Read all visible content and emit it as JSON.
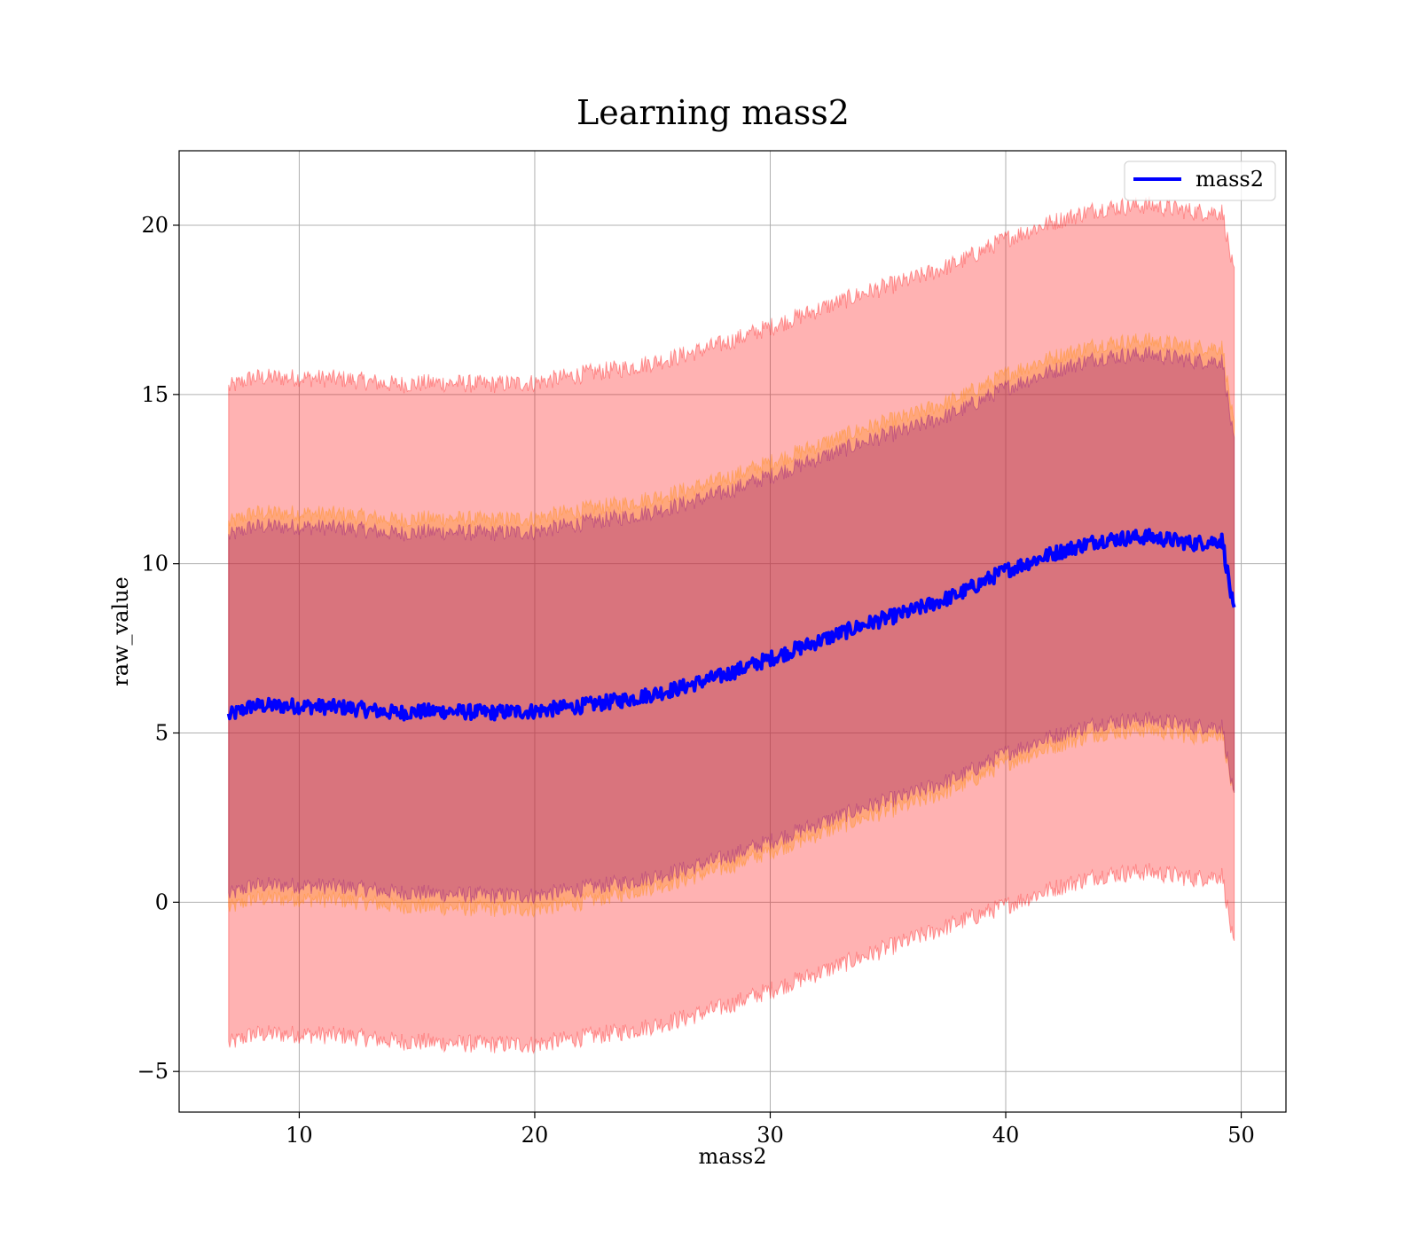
{
  "chart_data": {
    "type": "area",
    "title": "Learning mass2",
    "xlabel": "mass2",
    "ylabel": "raw_value",
    "xlim": [
      4.9,
      51.9
    ],
    "ylim": [
      -6.2,
      22.2
    ],
    "xticks": [
      10,
      20,
      30,
      40,
      50
    ],
    "xtick_labels": [
      "10",
      "20",
      "30",
      "40",
      "50"
    ],
    "yticks": [
      -5,
      0,
      5,
      10,
      15,
      20
    ],
    "ytick_labels": [
      "−5",
      "0",
      "5",
      "10",
      "15",
      "20"
    ],
    "grid": true,
    "legend": {
      "position": "top-right",
      "entries": [
        "mass2"
      ]
    },
    "colors": {
      "line": "#0000ff",
      "band_outer": "#ff0000",
      "band_mid": "#ff8c00",
      "band_inner": "#800080"
    },
    "x": [
      7,
      8,
      10,
      12,
      14,
      16,
      18,
      20,
      22,
      24,
      26,
      28,
      30,
      32,
      34,
      36,
      38,
      40,
      42,
      44,
      46,
      48,
      49.2,
      49.7
    ],
    "series": [
      {
        "name": "mass2",
        "role": "line",
        "values": [
          5.5,
          5.8,
          5.8,
          5.75,
          5.6,
          5.65,
          5.6,
          5.65,
          5.8,
          6.0,
          6.3,
          6.7,
          7.2,
          7.7,
          8.2,
          8.6,
          9.1,
          9.8,
          10.3,
          10.7,
          10.8,
          10.6,
          10.7,
          8.5
        ]
      },
      {
        "role": "band-outer",
        "lower": [
          -4.2,
          -3.9,
          -3.9,
          -3.95,
          -4.1,
          -4.15,
          -4.2,
          -4.2,
          -4.0,
          -3.8,
          -3.5,
          -3.1,
          -2.6,
          -2.1,
          -1.6,
          -1.1,
          -0.6,
          -0.1,
          0.4,
          0.8,
          0.9,
          0.7,
          0.8,
          -1.4
        ],
        "upper": [
          15.2,
          15.5,
          15.5,
          15.45,
          15.3,
          15.35,
          15.3,
          15.35,
          15.6,
          15.8,
          16.1,
          16.5,
          17.0,
          17.5,
          18.0,
          18.4,
          18.9,
          19.6,
          20.1,
          20.5,
          20.6,
          20.4,
          20.4,
          18.5
        ]
      },
      {
        "role": "band-mid",
        "lower": [
          -0.2,
          0.1,
          0.1,
          0.05,
          -0.1,
          -0.15,
          -0.2,
          -0.2,
          0.0,
          0.3,
          0.6,
          1.0,
          1.5,
          2.0,
          2.5,
          2.9,
          3.4,
          4.1,
          4.6,
          5.0,
          5.1,
          4.9,
          5.0,
          3.0
        ],
        "upper": [
          11.2,
          11.5,
          11.5,
          11.45,
          11.3,
          11.35,
          11.3,
          11.35,
          11.6,
          11.8,
          12.1,
          12.5,
          13.0,
          13.5,
          14.0,
          14.4,
          14.9,
          15.6,
          16.1,
          16.5,
          16.6,
          16.4,
          16.4,
          14.0
        ]
      },
      {
        "role": "band-inner",
        "lower": [
          0.2,
          0.5,
          0.5,
          0.45,
          0.3,
          0.25,
          0.2,
          0.2,
          0.4,
          0.6,
          0.9,
          1.3,
          1.8,
          2.3,
          2.8,
          3.2,
          3.7,
          4.4,
          4.9,
          5.3,
          5.4,
          5.2,
          5.2,
          3.0
        ],
        "upper": [
          10.8,
          11.1,
          11.1,
          11.05,
          10.9,
          10.95,
          10.9,
          10.95,
          11.2,
          11.4,
          11.7,
          12.1,
          12.6,
          13.1,
          13.6,
          14.0,
          14.5,
          15.2,
          15.7,
          16.1,
          16.2,
          16.0,
          16.0,
          13.5
        ]
      }
    ]
  }
}
